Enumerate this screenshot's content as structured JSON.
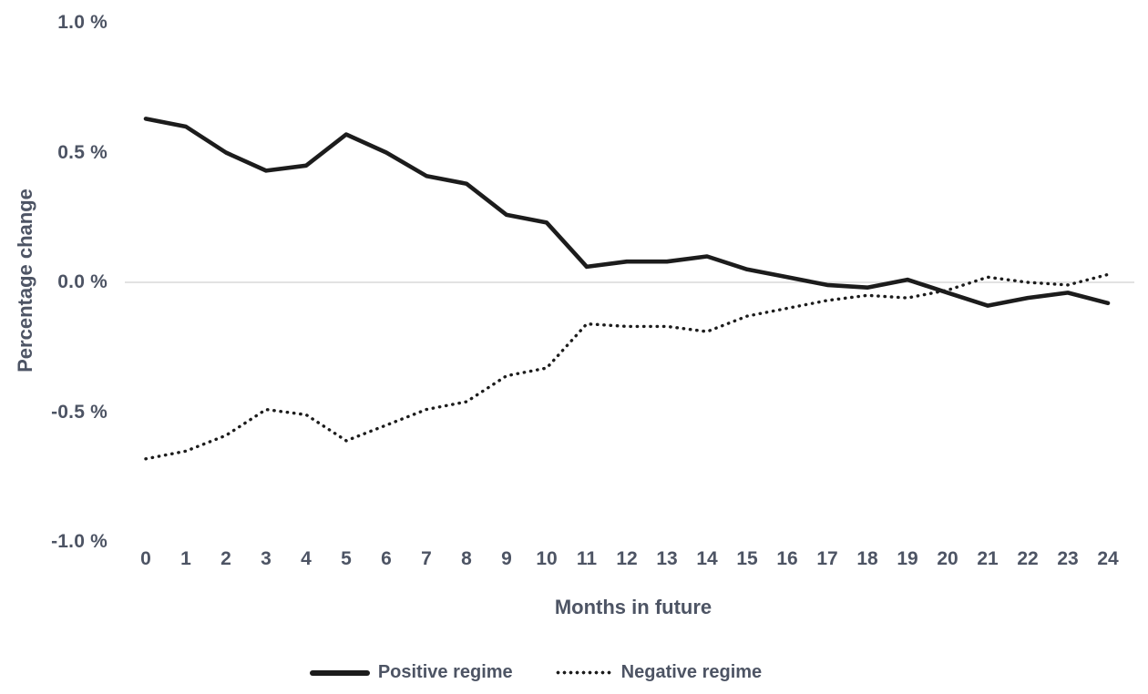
{
  "chart_data": {
    "type": "line",
    "title": "",
    "xlabel": "Months in future",
    "ylabel": "Percentage change",
    "categories": [
      "0",
      "1",
      "2",
      "3",
      "4",
      "5",
      "6",
      "7",
      "8",
      "9",
      "10",
      "11",
      "12",
      "13",
      "14",
      "15",
      "16",
      "17",
      "18",
      "19",
      "20",
      "21",
      "22",
      "23",
      "24"
    ],
    "series": [
      {
        "name": "Positive regime",
        "line_style": "solid",
        "values": [
          0.63,
          0.6,
          0.5,
          0.43,
          0.45,
          0.57,
          0.5,
          0.41,
          0.38,
          0.26,
          0.23,
          0.06,
          0.08,
          0.08,
          0.1,
          0.05,
          0.02,
          -0.01,
          -0.02,
          0.01,
          -0.04,
          -0.09,
          -0.06,
          -0.04,
          -0.08
        ]
      },
      {
        "name": "Negative regime",
        "line_style": "dotted",
        "values": [
          -0.68,
          -0.65,
          -0.59,
          -0.49,
          -0.51,
          -0.61,
          -0.55,
          -0.49,
          -0.46,
          -0.36,
          -0.33,
          -0.16,
          -0.17,
          -0.17,
          -0.19,
          -0.13,
          -0.1,
          -0.07,
          -0.05,
          -0.06,
          -0.03,
          0.02,
          0.0,
          -0.01,
          0.03
        ]
      }
    ],
    "yticks": [
      {
        "label": "1.0 %",
        "value": 1.0
      },
      {
        "label": "0.5 %",
        "value": 0.5
      },
      {
        "label": "0.0 %",
        "value": 0.0
      },
      {
        "label": "-0.5 %",
        "value": -0.5
      },
      {
        "label": "-1.0 %",
        "value": -1.0
      }
    ],
    "ylim": [
      -1.0,
      1.0
    ],
    "unit": "percent",
    "grid": "zero-line-only",
    "legend_position": "bottom"
  },
  "colors": {
    "line": "#1c1c1c",
    "gridline": "#d9d9d9",
    "text": "#4d5464",
    "background": "#ffffff"
  }
}
